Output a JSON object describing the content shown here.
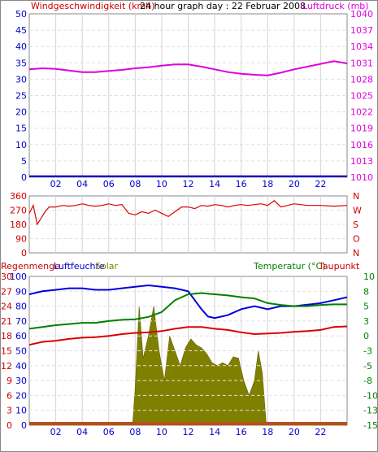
{
  "header": {
    "title": "24 hour graph day : 22 Februar 2008"
  },
  "colors": {
    "wind": "#0000cc",
    "pressure": "#dd00dd",
    "direction": "#dd0000",
    "rain": "#dd0000",
    "humidity": "#0000dd",
    "solar": "#808000",
    "temperature": "#008000",
    "dewpoint": "#dd0000"
  },
  "x_ticks": [
    "02",
    "04",
    "06",
    "08",
    "10",
    "12",
    "14",
    "16",
    "18",
    "20",
    "22"
  ],
  "chart_data": [
    {
      "type": "line",
      "title": "24 hour graph day : 22 Februar 2008",
      "left_axis_label": "Windgeschwindigkeit (kmh)",
      "right_axis_label": "Luftdruck (mb)",
      "left_ticks": [
        "0",
        "5",
        "10",
        "15",
        "20",
        "25",
        "30",
        "35",
        "40",
        "45",
        "50"
      ],
      "right_ticks": [
        "1010",
        "1013",
        "1016",
        "1019",
        "1022",
        "1025",
        "1028",
        "1031",
        "1034",
        "1037",
        "1040"
      ],
      "ylim_left": [
        0,
        50
      ],
      "ylim_right": [
        1010,
        1040
      ],
      "x_range": [
        0,
        24
      ],
      "series": [
        {
          "name": "Windgeschwindigkeit (kmh)",
          "axis": "left",
          "x": [
            0,
            24
          ],
          "y": [
            0.3,
            0.3
          ]
        },
        {
          "name": "Luftdruck (mb)",
          "axis": "right",
          "x": [
            0,
            1,
            2,
            3,
            4,
            5,
            6,
            7,
            8,
            9,
            10,
            11,
            12,
            13,
            14,
            15,
            16,
            17,
            18,
            19,
            20,
            21,
            22,
            23,
            24
          ],
          "y": [
            1029.8,
            1030.0,
            1029.9,
            1029.6,
            1029.3,
            1029.3,
            1029.5,
            1029.7,
            1030.0,
            1030.2,
            1030.5,
            1030.7,
            1030.7,
            1030.3,
            1029.8,
            1029.3,
            1029.0,
            1028.8,
            1028.7,
            1029.2,
            1029.8,
            1030.3,
            1030.8,
            1031.3,
            1030.9
          ]
        }
      ]
    },
    {
      "type": "line",
      "left_ticks": [
        "0",
        "90",
        "180",
        "270",
        "360"
      ],
      "right_ticks": [
        "N",
        "O",
        "S",
        "W",
        "N"
      ],
      "ylim": [
        0,
        360
      ],
      "x_range": [
        0,
        24
      ],
      "series": [
        {
          "name": "direction",
          "x": [
            0,
            0.3,
            0.6,
            0.9,
            1.2,
            1.5,
            2,
            2.5,
            3,
            3.5,
            4,
            4.5,
            5,
            5.5,
            6,
            6.5,
            7,
            7.5,
            8,
            8.5,
            9,
            9.5,
            10,
            10.5,
            11,
            11.5,
            12,
            12.5,
            13,
            13.5,
            14,
            14.5,
            15,
            15.5,
            16,
            16.5,
            17,
            17.5,
            18,
            18.5,
            19,
            19.5,
            20,
            21,
            22,
            23,
            24
          ],
          "y": [
            250,
            300,
            180,
            220,
            260,
            290,
            290,
            300,
            295,
            300,
            310,
            300,
            295,
            300,
            310,
            300,
            305,
            250,
            240,
            260,
            250,
            270,
            250,
            230,
            260,
            290,
            290,
            280,
            300,
            295,
            305,
            300,
            290,
            300,
            305,
            300,
            305,
            310,
            300,
            330,
            290,
            300,
            310,
            300,
            300,
            295,
            300
          ]
        }
      ]
    },
    {
      "type": "area",
      "left_axis_label": "Regenmenge",
      "left2_axis_label": "Luftfeuchte",
      "solar_label": "Solar",
      "right_axis_label": "Temperatur (°C)",
      "right2_axis_label": "Taupunkt",
      "rain_ticks": [
        "0",
        "3",
        "6",
        "9",
        "12",
        "15",
        "18",
        "21",
        "24",
        "27",
        "30"
      ],
      "humidity_ticks": [
        "0",
        "10",
        "20",
        "30",
        "40",
        "50",
        "60",
        "70",
        "80",
        "90",
        "100"
      ],
      "temp_ticks": [
        "-15",
        "-13",
        "-10",
        "-8",
        "-5",
        "-3",
        "0",
        "3",
        "5",
        "8",
        "10"
      ],
      "ylim_humidity": [
        0,
        100
      ],
      "ylim_temp": [
        -15,
        10
      ],
      "x_range": [
        0,
        24
      ],
      "series": [
        {
          "name": "Luftfeuchte",
          "x": [
            0,
            1,
            2,
            3,
            4,
            5,
            6,
            7,
            8,
            9,
            10,
            11,
            12,
            13,
            13.5,
            14,
            15,
            16,
            17,
            18,
            19,
            20,
            21,
            22,
            23,
            24
          ],
          "y": [
            88,
            90,
            91,
            92,
            92,
            91,
            91,
            92,
            93,
            94,
            93,
            92,
            90,
            78,
            73,
            72,
            74,
            78,
            80,
            78,
            80,
            80,
            81,
            82,
            84,
            86
          ]
        },
        {
          "name": "Temperatur",
          "x": [
            0,
            1,
            2,
            3,
            4,
            5,
            6,
            7,
            8,
            9,
            10,
            11,
            12,
            13,
            14,
            15,
            16,
            17,
            18,
            19,
            20,
            21,
            22,
            23,
            24
          ],
          "y": [
            1.2,
            1.5,
            1.8,
            2.0,
            2.2,
            2.2,
            2.5,
            2.7,
            2.8,
            3.2,
            4.0,
            6.0,
            7.0,
            7.2,
            7.0,
            6.8,
            6.5,
            6.3,
            5.5,
            5.2,
            5.0,
            5.0,
            5.2,
            5.3,
            5.3
          ]
        },
        {
          "name": "Taupunkt",
          "x": [
            0,
            1,
            2,
            3,
            4,
            5,
            6,
            7,
            8,
            9,
            10,
            11,
            12,
            13,
            14,
            15,
            16,
            17,
            18,
            19,
            20,
            21,
            22,
            23,
            24
          ],
          "y": [
            -1.5,
            -1.0,
            -0.8,
            -0.5,
            -0.3,
            -0.2,
            0,
            0.3,
            0.5,
            0.6,
            0.8,
            1.2,
            1.5,
            1.5,
            1.2,
            1.0,
            0.6,
            0.3,
            0.4,
            0.5,
            0.7,
            0.8,
            1.0,
            1.5,
            1.6
          ]
        },
        {
          "name": "Solar",
          "x": [
            0,
            7.8,
            8.0,
            8.3,
            8.6,
            9.0,
            9.4,
            9.8,
            10.2,
            10.6,
            11.0,
            11.4,
            11.8,
            12.2,
            12.6,
            13.0,
            13.4,
            13.8,
            14.2,
            14.6,
            15.0,
            15.4,
            15.8,
            16.2,
            16.6,
            17.0,
            17.3,
            17.6,
            17.9,
            24
          ],
          "y": [
            0,
            0,
            25,
            80,
            45,
            60,
            80,
            50,
            30,
            60,
            50,
            40,
            52,
            58,
            54,
            52,
            48,
            42,
            40,
            42,
            40,
            46,
            45,
            30,
            20,
            30,
            50,
            35,
            0,
            0
          ]
        },
        {
          "name": "Regenmenge",
          "x": [
            0,
            24
          ],
          "y": [
            0,
            0
          ]
        }
      ]
    }
  ]
}
